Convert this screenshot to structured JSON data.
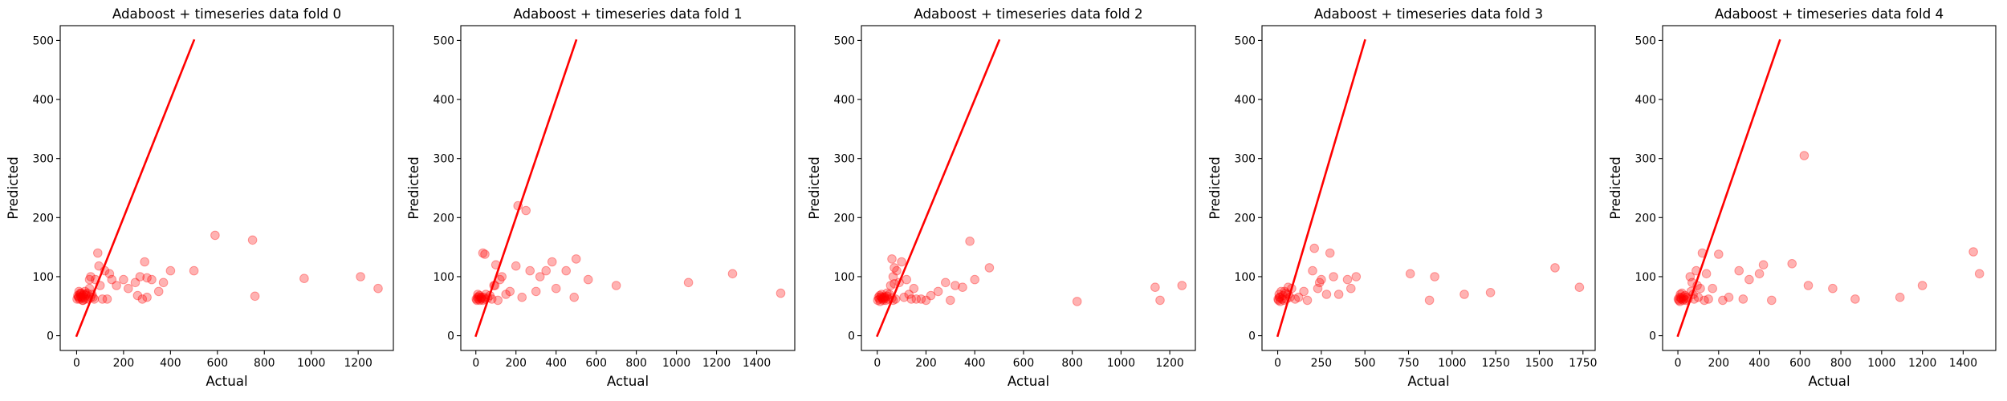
{
  "chart_data": [
    {
      "type": "scatter",
      "title": "Adaboost + timeseries data fold 0",
      "xlabel": "Actual",
      "ylabel": "Predicted",
      "xlim": [
        -70,
        1350
      ],
      "ylim": [
        -25,
        525
      ],
      "xticks": [
        0,
        200,
        400,
        600,
        800,
        1000,
        1200
      ],
      "yticks": [
        0,
        100,
        200,
        300,
        400,
        500
      ],
      "reference_line": {
        "x": [
          0,
          500
        ],
        "y": [
          0,
          500
        ]
      },
      "grid": false,
      "legend": "none",
      "colors": {
        "points": "#ff0000",
        "line": "#ff0000"
      },
      "x": [
        2,
        5,
        8,
        10,
        12,
        15,
        18,
        20,
        22,
        25,
        28,
        30,
        33,
        35,
        40,
        45,
        50,
        55,
        60,
        65,
        70,
        75,
        80,
        90,
        100,
        110,
        120,
        140,
        150,
        170,
        200,
        220,
        250,
        270,
        280,
        290,
        300,
        320,
        350,
        370,
        400,
        500,
        590,
        750,
        760,
        970,
        1210,
        1285,
        60,
        40,
        25,
        15,
        8,
        35,
        55,
        95,
        130,
        260,
        300
      ],
      "y": [
        62,
        68,
        65,
        75,
        62,
        70,
        66,
        72,
        64,
        68,
        60,
        70,
        65,
        75,
        68,
        72,
        62,
        95,
        100,
        70,
        65,
        62,
        95,
        140,
        85,
        62,
        110,
        105,
        95,
        85,
        95,
        80,
        90,
        100,
        62,
        125,
        65,
        95,
        75,
        90,
        110,
        110,
        170,
        162,
        67,
        97,
        100,
        80,
        65,
        70,
        60,
        72,
        66,
        62,
        80,
        118,
        62,
        68,
        98
      ]
    },
    {
      "type": "scatter",
      "title": "Adaboost + timeseries data fold 1",
      "xlabel": "Actual",
      "ylabel": "Predicted",
      "xlim": [
        -75,
        1590
      ],
      "ylim": [
        -25,
        525
      ],
      "xticks": [
        0,
        200,
        400,
        600,
        800,
        1000,
        1200,
        1400
      ],
      "yticks": [
        0,
        100,
        200,
        300,
        400,
        500
      ],
      "reference_line": {
        "x": [
          0,
          500
        ],
        "y": [
          0,
          500
        ]
      },
      "grid": false,
      "legend": "none",
      "colors": {
        "points": "#ff0000",
        "line": "#ff0000"
      },
      "x": [
        2,
        5,
        8,
        10,
        12,
        15,
        18,
        20,
        25,
        28,
        30,
        35,
        40,
        45,
        50,
        60,
        70,
        80,
        90,
        100,
        110,
        120,
        130,
        150,
        170,
        200,
        210,
        230,
        250,
        270,
        300,
        320,
        350,
        380,
        400,
        450,
        490,
        500,
        560,
        700,
        1060,
        1280,
        1520,
        35,
        45,
        95
      ],
      "y": [
        62,
        60,
        65,
        70,
        62,
        66,
        68,
        60,
        64,
        65,
        62,
        60,
        65,
        62,
        70,
        64,
        68,
        62,
        85,
        120,
        60,
        95,
        100,
        70,
        75,
        118,
        220,
        65,
        212,
        110,
        75,
        100,
        110,
        125,
        80,
        110,
        65,
        130,
        95,
        85,
        90,
        105,
        72,
        140,
        138,
        85
      ]
    },
    {
      "type": "scatter",
      "title": "Adaboost + timeseries data fold 2",
      "xlabel": "Actual",
      "ylabel": "Predicted",
      "xlim": [
        -65,
        1305
      ],
      "ylim": [
        -25,
        525
      ],
      "xticks": [
        0,
        200,
        400,
        600,
        800,
        1000,
        1200
      ],
      "yticks": [
        0,
        100,
        200,
        300,
        400,
        500
      ],
      "reference_line": {
        "x": [
          0,
          500
        ],
        "y": [
          0,
          500
        ]
      },
      "grid": false,
      "legend": "none",
      "colors": {
        "points": "#ff0000",
        "line": "#ff0000"
      },
      "x": [
        2,
        5,
        8,
        10,
        12,
        15,
        18,
        20,
        22,
        25,
        28,
        30,
        35,
        40,
        45,
        50,
        55,
        60,
        65,
        70,
        75,
        80,
        90,
        100,
        110,
        120,
        130,
        140,
        150,
        160,
        180,
        200,
        220,
        250,
        280,
        300,
        320,
        350,
        380,
        400,
        460,
        820,
        1140,
        1160,
        1250,
        60,
        70,
        65,
        40,
        30
      ],
      "y": [
        60,
        65,
        62,
        68,
        58,
        66,
        70,
        64,
        62,
        60,
        65,
        63,
        60,
        67,
        62,
        70,
        85,
        64,
        60,
        88,
        62,
        110,
        90,
        125,
        65,
        95,
        70,
        62,
        80,
        62,
        62,
        60,
        68,
        75,
        90,
        60,
        85,
        82,
        160,
        95,
        115,
        58,
        82,
        60,
        85,
        130,
        115,
        100,
        72,
        66
      ]
    },
    {
      "type": "scatter",
      "title": "Adaboost + timeseries data fold 3",
      "xlabel": "Actual",
      "ylabel": "Predicted",
      "xlim": [
        -90,
        1820
      ],
      "ylim": [
        -25,
        525
      ],
      "xticks": [
        0,
        250,
        500,
        750,
        1000,
        1250,
        1500,
        1750
      ],
      "yticks": [
        0,
        100,
        200,
        300,
        400,
        500
      ],
      "reference_line": {
        "x": [
          0,
          500
        ],
        "y": [
          0,
          500
        ]
      },
      "grid": false,
      "legend": "none",
      "colors": {
        "points": "#ff0000",
        "line": "#ff0000"
      },
      "x": [
        2,
        5,
        8,
        12,
        15,
        20,
        25,
        30,
        35,
        40,
        50,
        60,
        70,
        80,
        100,
        120,
        150,
        170,
        200,
        210,
        230,
        240,
        250,
        280,
        300,
        320,
        350,
        400,
        420,
        450,
        760,
        870,
        900,
        1070,
        1220,
        1590,
        1730,
        60,
        45,
        10
      ],
      "y": [
        62,
        60,
        70,
        65,
        58,
        75,
        62,
        68,
        60,
        75,
        62,
        70,
        65,
        80,
        62,
        65,
        75,
        60,
        110,
        148,
        80,
        90,
        95,
        70,
        140,
        100,
        70,
        95,
        80,
        100,
        105,
        60,
        100,
        70,
        73,
        115,
        82,
        82,
        72,
        65
      ]
    },
    {
      "type": "scatter",
      "title": "Adaboost + timeseries data fold 4",
      "xlabel": "Actual",
      "ylabel": "Predicted",
      "xlim": [
        -75,
        1560
      ],
      "ylim": [
        -25,
        525
      ],
      "xticks": [
        0,
        200,
        400,
        600,
        800,
        1000,
        1200,
        1400
      ],
      "yticks": [
        0,
        100,
        200,
        300,
        400,
        500
      ],
      "reference_line": {
        "x": [
          0,
          500
        ],
        "y": [
          0,
          500
        ]
      },
      "grid": false,
      "legend": "none",
      "colors": {
        "points": "#ff0000",
        "line": "#ff0000"
      },
      "x": [
        2,
        5,
        8,
        10,
        12,
        15,
        18,
        20,
        25,
        28,
        30,
        35,
        40,
        45,
        50,
        60,
        70,
        80,
        90,
        100,
        110,
        120,
        130,
        140,
        150,
        170,
        200,
        220,
        250,
        300,
        320,
        350,
        400,
        420,
        460,
        560,
        620,
        640,
        760,
        870,
        1090,
        1200,
        1450,
        1480,
        75,
        65,
        95
      ],
      "y": [
        62,
        60,
        65,
        58,
        70,
        64,
        62,
        72,
        60,
        66,
        62,
        68,
        60,
        65,
        62,
        100,
        90,
        62,
        110,
        65,
        80,
        140,
        60,
        105,
        62,
        80,
        138,
        60,
        65,
        110,
        62,
        95,
        105,
        120,
        60,
        122,
        305,
        85,
        80,
        62,
        65,
        85,
        142,
        105,
        70,
        75,
        85
      ]
    }
  ]
}
